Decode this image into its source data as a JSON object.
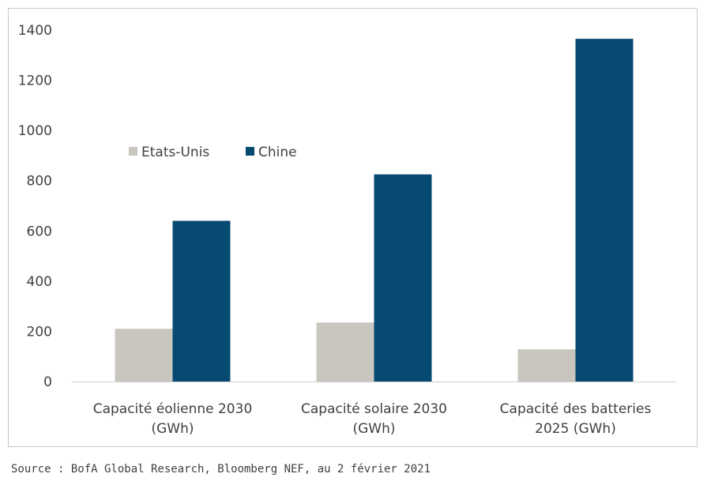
{
  "source_note": "Source : BofA Global Research, Bloomberg NEF, au 2 février 2021",
  "chart_data": {
    "type": "bar",
    "title": "",
    "xlabel": "",
    "ylabel": "",
    "ylim": [
      0,
      1400
    ],
    "yticks": [
      0,
      200,
      400,
      600,
      800,
      1000,
      1200,
      1400
    ],
    "grid": false,
    "legend_position": "upper-left",
    "categories": [
      [
        "Capacité éolienne 2030",
        "(GWh)"
      ],
      [
        "Capacité solaire 2030",
        "(GWh)"
      ],
      [
        "Capacité des batteries",
        "2025 (GWh)"
      ]
    ],
    "series": [
      {
        "name": "Etats-Unis",
        "color": "#c9c5bf",
        "values": [
          210,
          235,
          128
        ]
      },
      {
        "name": "Chine",
        "color": "#064a72",
        "values": [
          640,
          825,
          1365
        ]
      }
    ]
  }
}
